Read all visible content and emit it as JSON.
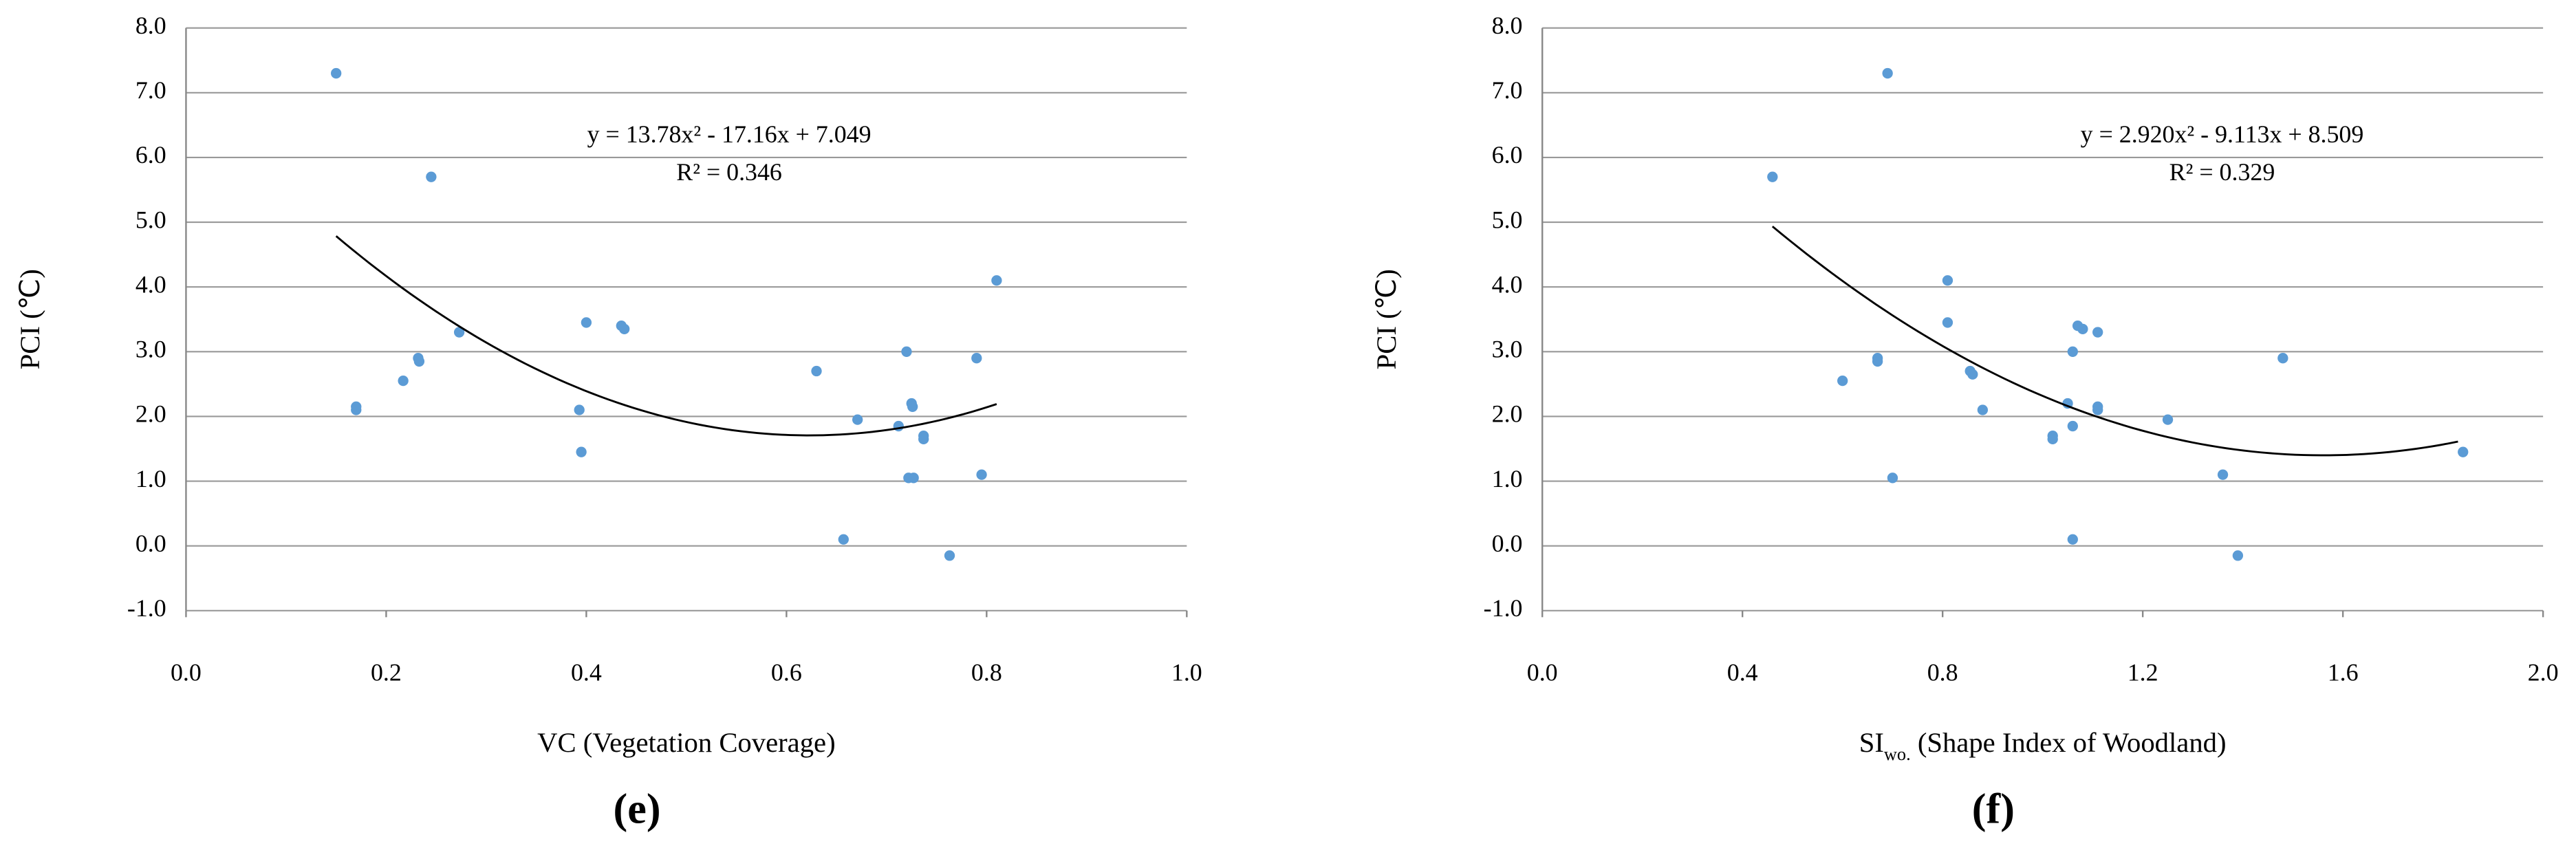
{
  "chart_data": [
    {
      "type": "scatter",
      "panel_label": "(e)",
      "ylabel": "PCI (℃)",
      "xlabel": [
        {
          "text": "VC (Vegetation Coverage)"
        }
      ],
      "xlim": [
        0,
        1.0
      ],
      "ylim": [
        -1,
        8
      ],
      "xticks": [
        {
          "value": 0,
          "label": "0.0"
        },
        {
          "value": 0.2,
          "label": "0.2"
        },
        {
          "value": 0.4,
          "label": "0.4"
        },
        {
          "value": 0.6,
          "label": "0.6"
        },
        {
          "value": 0.8,
          "label": "0.8"
        },
        {
          "value": 1,
          "label": "1.0"
        }
      ],
      "yticks": [
        {
          "value": -1,
          "label": "-1.0"
        },
        {
          "value": 0,
          "label": "0.0"
        },
        {
          "value": 1,
          "label": "1.0"
        },
        {
          "value": 2,
          "label": "2.0"
        },
        {
          "value": 3,
          "label": "3.0"
        },
        {
          "value": 4,
          "label": "4.0"
        },
        {
          "value": 5,
          "label": "5.0"
        },
        {
          "value": 6,
          "label": "6.0"
        },
        {
          "value": 7,
          "label": "7.0"
        },
        {
          "value": 8,
          "label": "8.0"
        }
      ],
      "grid": true,
      "color": "#5b9bd5",
      "x": [
        0.15,
        0.245,
        0.273,
        0.232,
        0.233,
        0.217,
        0.17,
        0.17,
        0.4,
        0.435,
        0.438,
        0.393,
        0.395,
        0.63,
        0.671,
        0.72,
        0.725,
        0.726,
        0.712,
        0.722,
        0.727,
        0.737,
        0.737,
        0.79,
        0.795,
        0.81,
        0.657,
        0.763
      ],
      "values": [
        7.3,
        5.7,
        3.3,
        2.9,
        2.85,
        2.55,
        2.1,
        2.15,
        3.45,
        3.4,
        3.35,
        2.1,
        1.45,
        2.7,
        1.95,
        3.0,
        2.2,
        2.15,
        1.85,
        1.05,
        1.05,
        1.65,
        1.7,
        2.9,
        1.1,
        4.1,
        0.1,
        -0.15
      ],
      "trendline": {
        "equation": "y = 13.78x² - 17.16x + 7.049",
        "r_squared_label": "R² = 0.346",
        "coefficients": [
          13.78,
          -17.16,
          7.049
        ],
        "xrange": [
          0.15,
          0.81
        ]
      }
    },
    {
      "type": "scatter",
      "panel_label": "(f)",
      "ylabel": "PCI (℃)",
      "xlabel": [
        {
          "text": "SI"
        },
        {
          "text": "wo.",
          "subscript": true
        },
        {
          "text": " (Shape Index of Woodland)"
        }
      ],
      "xlim": [
        0,
        2.0
      ],
      "ylim": [
        -1,
        8
      ],
      "xticks": [
        {
          "value": 0,
          "label": "0.0"
        },
        {
          "value": 0.4,
          "label": "0.4"
        },
        {
          "value": 0.8,
          "label": "0.8"
        },
        {
          "value": 1.2,
          "label": "1.2"
        },
        {
          "value": 1.6,
          "label": "1.6"
        },
        {
          "value": 2,
          "label": "2.0"
        }
      ],
      "yticks": [
        {
          "value": -1,
          "label": "-1.0"
        },
        {
          "value": 0,
          "label": "0.0"
        },
        {
          "value": 1,
          "label": "1.0"
        },
        {
          "value": 2,
          "label": "2.0"
        },
        {
          "value": 3,
          "label": "3.0"
        },
        {
          "value": 4,
          "label": "4.0"
        },
        {
          "value": 5,
          "label": "5.0"
        },
        {
          "value": 6,
          "label": "6.0"
        },
        {
          "value": 7,
          "label": "7.0"
        },
        {
          "value": 8,
          "label": "8.0"
        }
      ],
      "grid": true,
      "color": "#5b9bd5",
      "x": [
        0.46,
        0.69,
        0.81,
        0.81,
        1.08,
        1.07,
        1.11,
        1.06,
        1.48,
        0.67,
        0.67,
        0.6,
        0.855,
        0.86,
        0.88,
        1.05,
        1.11,
        1.11,
        1.25,
        1.06,
        1.02,
        1.02,
        0.7,
        1.36,
        1.84,
        1.06,
        1.39
      ],
      "values": [
        5.7,
        7.3,
        4.1,
        3.45,
        3.35,
        3.4,
        3.3,
        3.0,
        2.9,
        2.9,
        2.85,
        2.55,
        2.7,
        2.65,
        2.1,
        2.2,
        2.15,
        2.1,
        1.95,
        1.85,
        1.7,
        1.65,
        1.05,
        1.1,
        1.45,
        0.1,
        -0.15
      ],
      "trendline": {
        "equation": "y = 2.920x² - 9.113x + 8.509",
        "r_squared_label": "R² = 0.329",
        "coefficients": [
          2.92,
          -9.113,
          8.509
        ],
        "xrange": [
          0.46,
          1.83
        ]
      }
    }
  ]
}
